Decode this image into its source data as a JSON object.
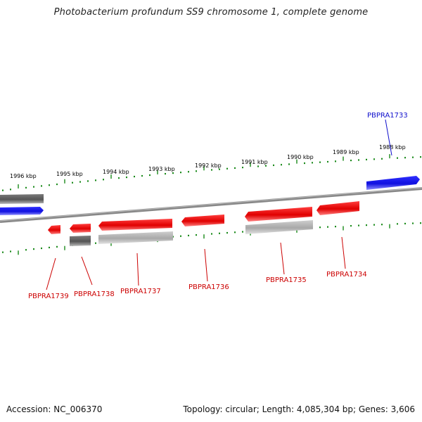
{
  "title": "Photobacterium profundum SS9 chromosome 1, complete genome",
  "footer": {
    "accession": "Accession: NC_006370",
    "summary": "Topology: circular; Length: 4,085,304 bp; Genes: 3,606"
  },
  "colors": {
    "forward_gene": "#e00000",
    "rna_gene": "#2020e0",
    "other_feature": "#666666",
    "faint_feature": "#bbbbbb",
    "tick": "#1a8a1a",
    "label_red": "#cc0000",
    "label_blue": "#1010cc",
    "backbone": "#888888"
  },
  "scale": {
    "unit": "kbp",
    "labels": [
      "1988 kbp",
      "1989 kbp",
      "1990 kbp",
      "1991 kbp",
      "1992 kbp",
      "1993 kbp",
      "1994 kbp",
      "1995 kbp",
      "1996 kbp"
    ]
  },
  "genes": [
    {
      "id": "PBPRA1733",
      "label": "PBPRA1733",
      "color": "blue"
    },
    {
      "id": "PBPRA1734",
      "label": "PBPRA1734",
      "color": "red"
    },
    {
      "id": "PBPRA1735",
      "label": "PBPRA1735",
      "color": "red"
    },
    {
      "id": "PBPRA1736",
      "label": "PBPRA1736",
      "color": "red"
    },
    {
      "id": "PBPRA1737",
      "label": "PBPRA1737",
      "color": "red"
    },
    {
      "id": "PBPRA1738",
      "label": "PBPRA1738",
      "color": "red"
    },
    {
      "id": "PBPRA1739",
      "label": "PBPRA1739",
      "color": "red"
    }
  ]
}
